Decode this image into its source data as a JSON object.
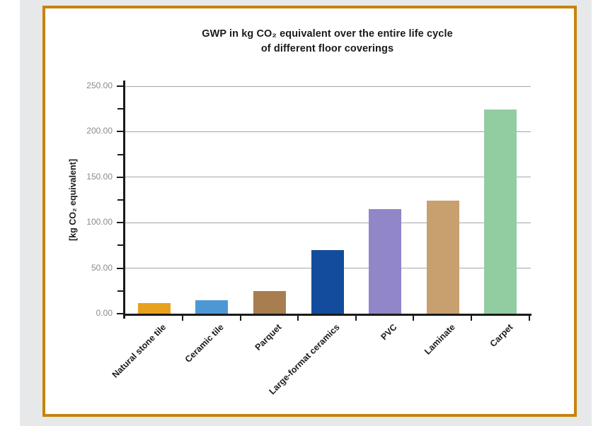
{
  "frame": {
    "page_background": "#FFFFFF",
    "panel_background": "#E7E8E9",
    "box_background": "#FFFFFF",
    "box_border_color": "#C5840D"
  },
  "chart_data": {
    "type": "bar",
    "title_line1": "GWP in kg CO₂ equivalent over the entire life cycle",
    "title_line2": "of different floor coverings",
    "ylabel": "[kg CO₂ equivalent]",
    "categories": [
      "Natural stone tile",
      "Ceramic tile",
      "Parquet",
      "Large-format ceramics",
      "PVC",
      "Laminate",
      "Carpet"
    ],
    "values": [
      12,
      15,
      25,
      70,
      115,
      124,
      224
    ],
    "bar_colors": [
      "#E8A11E",
      "#4E97D6",
      "#A87D50",
      "#134C9C",
      "#9186C8",
      "#C89F6E",
      "#92CDA2"
    ],
    "ylim": [
      0,
      250
    ],
    "ytick_major_step": 50,
    "ytick_minor_step": 25,
    "ytick_labels": [
      "0.00",
      "50.00",
      "100.00",
      "150.00",
      "200.00",
      "250.00"
    ],
    "grid": "horizontal major gridlines only",
    "legend": "none",
    "colors": {
      "axis": "#1a1a1a",
      "gridline": "#A6A6A6",
      "tick_label": "#8A8A8A",
      "title_text": "#1a1a1a",
      "category_label": "#1a1a1a"
    }
  }
}
